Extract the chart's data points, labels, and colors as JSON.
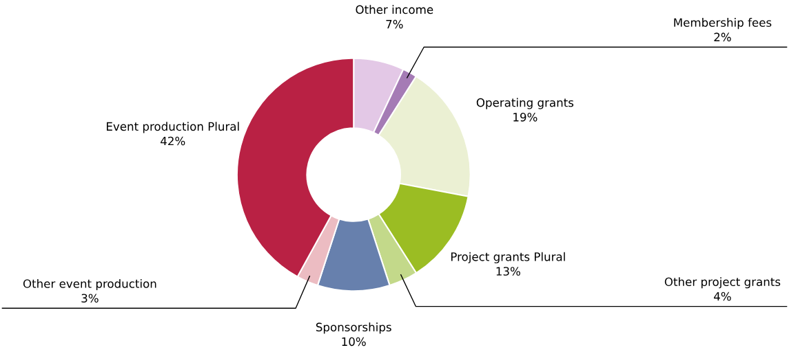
{
  "chart_data": {
    "type": "donut",
    "categories": [
      "Other income",
      "Membership fees",
      "Operating grants",
      "Project grants Plural",
      "Other project grants",
      "Sponsorships",
      "Other event production",
      "Event production Plural"
    ],
    "values": [
      7,
      2,
      19,
      13,
      4,
      10,
      3,
      42
    ],
    "value_labels": [
      "7%",
      "2%",
      "19%",
      "13%",
      "4%",
      "10%",
      "3%",
      "42%"
    ],
    "colors": [
      "#e3c8e6",
      "#a57bb5",
      "#ebf0d3",
      "#9bbd23",
      "#c3d98a",
      "#6780ad",
      "#ecbcc2",
      "#b92144"
    ]
  }
}
